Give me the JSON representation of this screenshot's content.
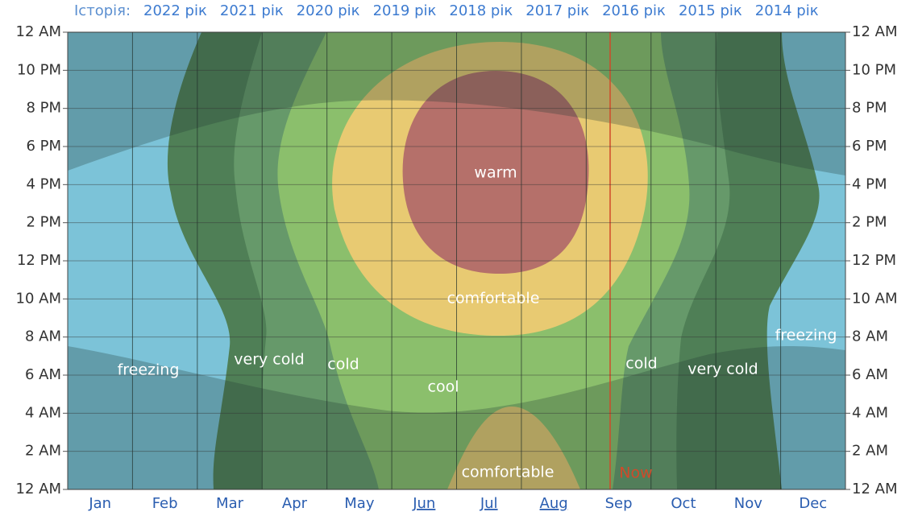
{
  "header": {
    "history_label": "Історія:",
    "years": [
      "2022 рік",
      "2021 рік",
      "2020 рік",
      "2019 рік",
      "2018 рік",
      "2017 рік",
      "2016 рік",
      "2015 рік",
      "2014 рік"
    ]
  },
  "chart_data": {
    "type": "contour",
    "categories": [
      "Jan",
      "Feb",
      "Mar",
      "Apr",
      "May",
      "Jun",
      "Jul",
      "Aug",
      "Sep",
      "Oct",
      "Nov",
      "Dec"
    ],
    "ylim": [
      0,
      24
    ],
    "yticks": [
      {
        "value": 0,
        "label": "12 AM"
      },
      {
        "value": 2,
        "label": "2 AM"
      },
      {
        "value": 4,
        "label": "4 AM"
      },
      {
        "value": 6,
        "label": "6 AM"
      },
      {
        "value": 8,
        "label": "8 AM"
      },
      {
        "value": 10,
        "label": "10 AM"
      },
      {
        "value": 12,
        "label": "12 PM"
      },
      {
        "value": 14,
        "label": "2 PM"
      },
      {
        "value": 16,
        "label": "4 PM"
      },
      {
        "value": 18,
        "label": "6 PM"
      },
      {
        "value": 20,
        "label": "8 PM"
      },
      {
        "value": 22,
        "label": "10 PM"
      },
      {
        "value": 24,
        "label": "12 AM"
      }
    ],
    "grid": true,
    "annotations": [
      "warm",
      "comfortable",
      "comfortable",
      "cool",
      "cold",
      "cold",
      "very cold",
      "very cold",
      "freezing",
      "freezing"
    ],
    "now_label": "Now"
  }
}
